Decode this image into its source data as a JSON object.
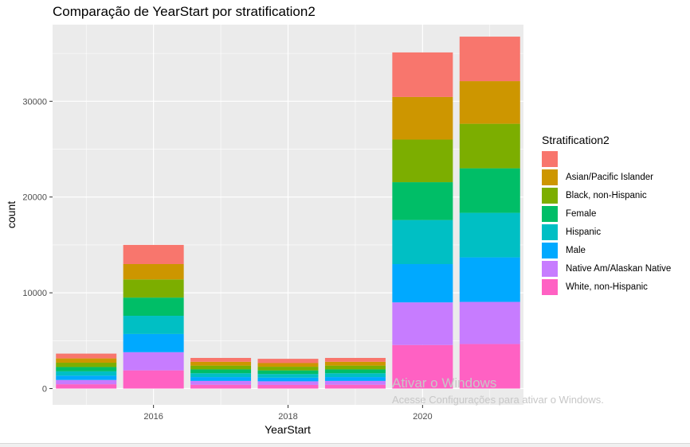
{
  "chart_data": {
    "type": "bar",
    "stacked": true,
    "title": "Comparação de YearStart por stratification2",
    "xlabel": "YearStart",
    "ylabel": "count",
    "xlim": [
      2014.5,
      2021.5
    ],
    "ylim": [
      -1700,
      38000
    ],
    "x_ticks": [
      2016,
      2018,
      2020
    ],
    "y_ticks": [
      0,
      10000,
      20000,
      30000
    ],
    "y_tick_labels": [
      "0",
      "10000",
      "20000",
      "30000"
    ],
    "grid": true,
    "legend_position": "right",
    "legend_title": "Stratification2",
    "x": [
      2015,
      2016,
      2017,
      2018,
      2019,
      2020,
      2021
    ],
    "series": [
      {
        "name": "White, non-Hispanic",
        "color": "#FF61C3",
        "values": [
          450,
          1900,
          400,
          380,
          400,
          4550,
          4650
        ]
      },
      {
        "name": "Native Am/Alaskan Native",
        "color": "#C77CFF",
        "values": [
          450,
          1900,
          400,
          380,
          400,
          4450,
          4400
        ]
      },
      {
        "name": "Male",
        "color": "#00A9FF",
        "values": [
          450,
          1900,
          400,
          380,
          400,
          4000,
          4650
        ]
      },
      {
        "name": "Hispanic",
        "color": "#00BFC4",
        "values": [
          450,
          1900,
          400,
          380,
          400,
          4600,
          4650
        ]
      },
      {
        "name": "Female",
        "color": "#00BE67",
        "values": [
          450,
          1900,
          400,
          380,
          400,
          3950,
          4650
        ]
      },
      {
        "name": "Black, non-Hispanic",
        "color": "#7CAE00",
        "values": [
          450,
          1900,
          400,
          380,
          400,
          4450,
          4650
        ]
      },
      {
        "name": "Asian/Pacific Islander",
        "color": "#CD9600",
        "values": [
          450,
          1600,
          400,
          380,
          400,
          4450,
          4450
        ]
      },
      {
        "name": "",
        "color": "#F8766D",
        "values": [
          500,
          2000,
          400,
          450,
          400,
          4650,
          4650
        ]
      }
    ]
  },
  "legend_items": [
    {
      "label": "",
      "color": "#F8766D"
    },
    {
      "label": "Asian/Pacific Islander",
      "color": "#CD9600"
    },
    {
      "label": "Black, non-Hispanic",
      "color": "#7CAE00"
    },
    {
      "label": "Female",
      "color": "#00BE67"
    },
    {
      "label": "Hispanic",
      "color": "#00BFC4"
    },
    {
      "label": "Male",
      "color": "#00A9FF"
    },
    {
      "label": "Native Am/Alaskan Native",
      "color": "#C77CFF"
    },
    {
      "label": "White, non-Hispanic",
      "color": "#FF61C3"
    }
  ],
  "watermark": {
    "title": "Ativar o Windows",
    "subtitle": "Acesse Configurações para ativar o Windows."
  },
  "colors": {
    "panel_bg": "#EBEBEB",
    "grid": "#FFFFFF"
  }
}
